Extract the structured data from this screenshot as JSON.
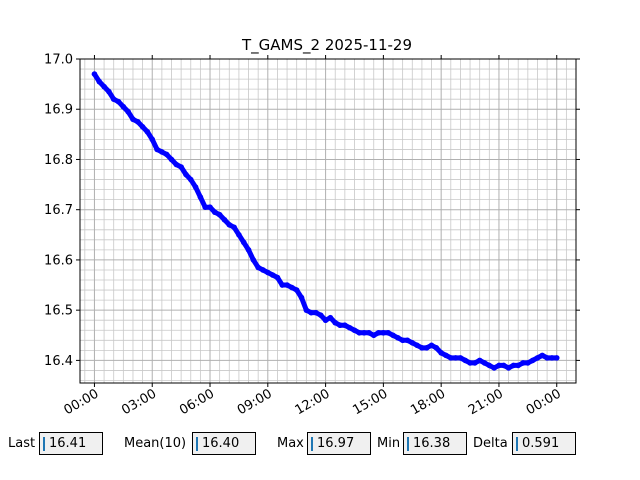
{
  "chart_data": {
    "type": "line",
    "title": "T_GAMS_2 2025-11-29",
    "xlabel": "",
    "ylabel": "",
    "ylim": [
      16.355,
      17.0
    ],
    "xlim": [
      -0.75,
      25.0
    ],
    "x_unit": "hours",
    "grid": true,
    "yticks": [
      16.4,
      16.5,
      16.6,
      16.7,
      16.8,
      16.9,
      17.0
    ],
    "ytick_labels": [
      "16.4",
      "16.5",
      "16.6",
      "16.7",
      "16.8",
      "16.9",
      "17.0"
    ],
    "xticks": [
      0,
      3,
      6,
      9,
      12,
      15,
      18,
      21,
      24
    ],
    "xtick_labels": [
      "00:00",
      "03:00",
      "06:00",
      "09:00",
      "12:00",
      "15:00",
      "18:00",
      "21:00",
      "00:00"
    ],
    "series_color": "#0000ff",
    "series": [
      {
        "x": [
          0.0,
          0.25,
          0.5,
          0.75,
          1.0,
          1.25,
          1.5,
          1.75,
          2.0,
          2.25,
          2.5,
          2.75,
          3.0,
          3.25,
          3.5,
          3.75,
          4.0,
          4.25,
          4.5,
          4.75,
          5.0,
          5.25,
          5.5,
          5.75,
          6.0,
          6.25,
          6.5,
          6.75,
          7.0,
          7.25,
          7.5,
          7.75,
          8.0,
          8.25,
          8.5,
          8.75,
          9.0,
          9.25,
          9.5,
          9.75,
          10.0,
          10.25,
          10.5,
          10.75,
          11.0,
          11.25,
          11.5,
          11.75,
          12.0,
          12.25,
          12.5,
          12.75,
          13.0,
          13.25,
          13.5,
          13.75,
          14.0,
          14.25,
          14.5,
          14.75,
          15.0,
          15.25,
          15.5,
          15.75,
          16.0,
          16.25,
          16.5,
          16.75,
          17.0,
          17.25,
          17.5,
          17.75,
          18.0,
          18.25,
          18.5,
          18.75,
          19.0,
          19.25,
          19.5,
          19.75,
          20.0,
          20.25,
          20.5,
          20.75,
          21.0,
          21.25,
          21.5,
          21.75,
          22.0,
          22.25,
          22.5,
          22.75,
          23.0,
          23.25,
          23.5,
          23.75,
          24.0
        ],
        "y": [
          16.97,
          16.955,
          16.945,
          16.935,
          16.92,
          16.915,
          16.905,
          16.895,
          16.88,
          16.875,
          16.865,
          16.855,
          16.84,
          16.82,
          16.815,
          16.81,
          16.8,
          16.79,
          16.785,
          16.77,
          16.76,
          16.745,
          16.725,
          16.705,
          16.705,
          16.695,
          16.69,
          16.68,
          16.67,
          16.665,
          16.65,
          16.635,
          16.62,
          16.6,
          16.585,
          16.58,
          16.575,
          16.57,
          16.565,
          16.55,
          16.55,
          16.545,
          16.54,
          16.525,
          16.5,
          16.495,
          16.495,
          16.49,
          16.48,
          16.485,
          16.475,
          16.47,
          16.47,
          16.465,
          16.46,
          16.455,
          16.455,
          16.455,
          16.45,
          16.455,
          16.455,
          16.455,
          16.45,
          16.445,
          16.44,
          16.44,
          16.435,
          16.43,
          16.425,
          16.425,
          16.43,
          16.425,
          16.415,
          16.41,
          16.405,
          16.405,
          16.405,
          16.4,
          16.395,
          16.395,
          16.4,
          16.395,
          16.39,
          16.385,
          16.39,
          16.39,
          16.385,
          16.39,
          16.39,
          16.395,
          16.395,
          16.4,
          16.405,
          16.41,
          16.405,
          16.405,
          16.405
        ]
      }
    ]
  },
  "stats": [
    {
      "label": "Last",
      "value": "16.41"
    },
    {
      "label": "Mean(10)",
      "value": "16.40"
    },
    {
      "label": "Max",
      "value": "16.97"
    },
    {
      "label": "Min",
      "value": "16.38"
    },
    {
      "label": "Delta",
      "value": "0.591"
    }
  ]
}
